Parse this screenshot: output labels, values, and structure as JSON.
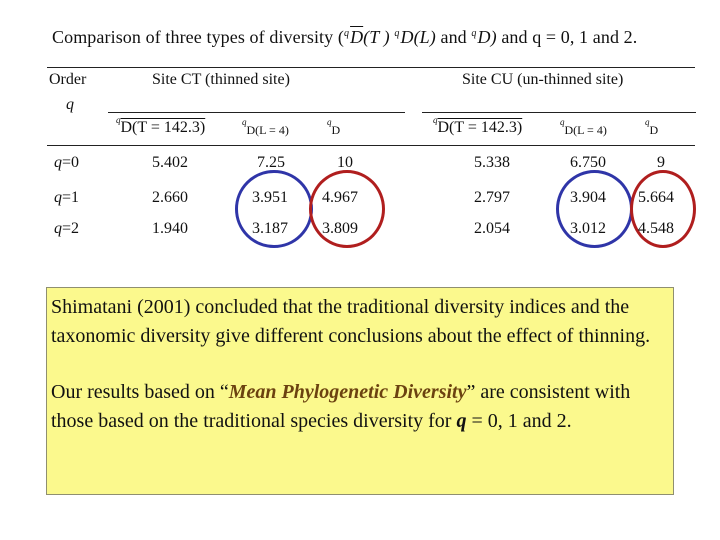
{
  "title": {
    "prefix": "Comparison of three types of diversity (",
    "m1_sup": "q",
    "m1": "D",
    "m1_arg": "(T )",
    "m2_sup": "q",
    "m2": "D(L)",
    "and": "and",
    "m3_sup": "q",
    "m3": "D)",
    "suffix": "and q = 0, 1 and 2."
  },
  "header": {
    "order": "Order",
    "q": "q",
    "site_ct": "Site CT (thinned site)",
    "site_cu": "Site CU (un-thinned site)"
  },
  "subheaders": {
    "ct_mean": {
      "sup": "q",
      "main": "D(T = 142.3)"
    },
    "ct_phylo": {
      "sup": "q",
      "main": "D(L = 4)"
    },
    "ct_species": {
      "sup": "q",
      "main": "D"
    },
    "cu_mean": {
      "sup": "q",
      "main": "D(T = 142.3)"
    },
    "cu_phylo": {
      "sup": "q",
      "main": "D(L = 4)"
    },
    "cu_species": {
      "sup": "q",
      "main": "D"
    }
  },
  "rows": [
    {
      "q_var": "q",
      "q_val": "=0",
      "ct": [
        "5.402",
        "7.25",
        "10"
      ],
      "cu": [
        "5.338",
        "6.750",
        "9"
      ]
    },
    {
      "q_var": "q",
      "q_val": "=1",
      "ct": [
        "2.660",
        "3.951",
        "4.967"
      ],
      "cu": [
        "2.797",
        "3.904",
        "5.664"
      ]
    },
    {
      "q_var": "q",
      "q_val": "=2",
      "ct": [
        "1.940",
        "3.187",
        "3.809"
      ],
      "cu": [
        "2.054",
        "3.012",
        "4.548"
      ]
    }
  ],
  "note": {
    "para1": "Shimatani (2001) concluded that the traditional diversity indices and the taxonomic diversity give different conclusions about the effect of thinning.",
    "para2_before": "Our results based on “",
    "para2_emph": "Mean Phylogenetic Diversity",
    "para2_after": "” are consistent with those based on the traditional species diversity for ",
    "para2_q": "q",
    "para2_end": " = 0, 1 and 2."
  },
  "colors": {
    "blue_ring": "#2f35a8",
    "red_ring": "#b01e1e",
    "note_bg": "#fbf98d"
  }
}
